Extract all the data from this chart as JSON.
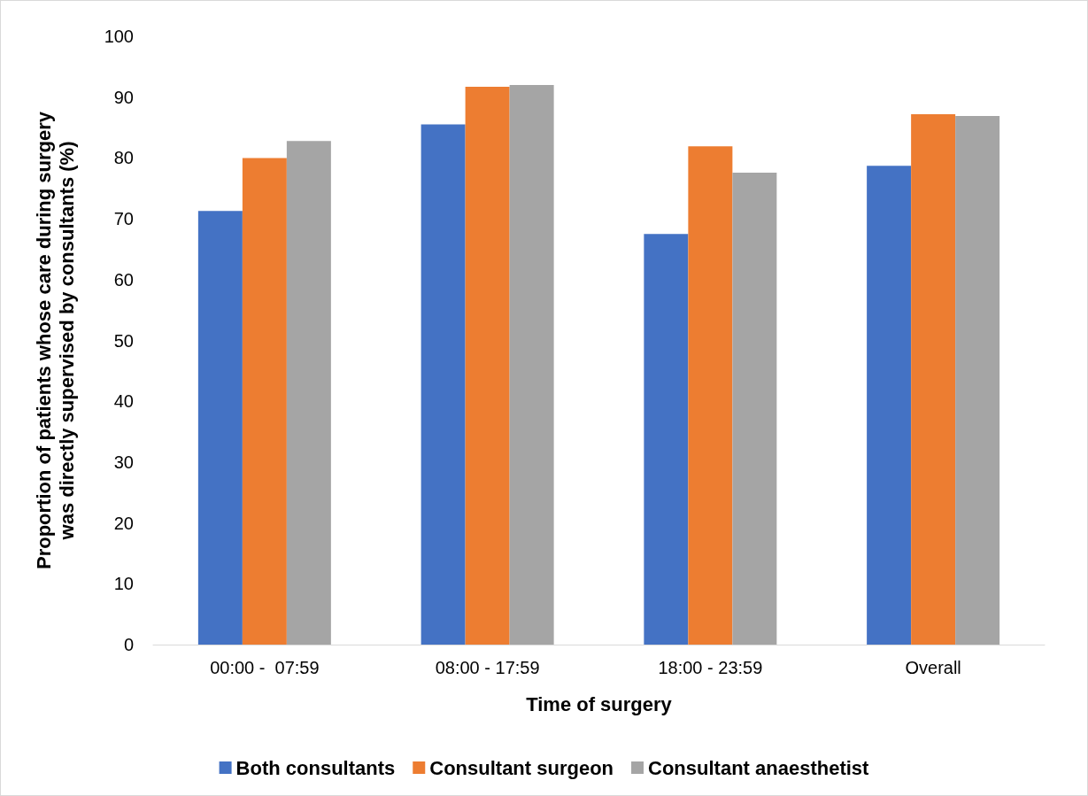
{
  "chart_data": {
    "type": "bar",
    "xlabel": "Time of surgery",
    "ylabel": "Proportion of patients whose care during surgery was directly supervised by consultants (%)",
    "categories": [
      "00:00 -  07:59",
      "08:00 - 17:59",
      "18:00 - 23:59",
      "Overall"
    ],
    "series": [
      {
        "name": "Both consultants",
        "color": "#4472c4",
        "values": [
          71.3,
          85.5,
          67.5,
          78.7
        ]
      },
      {
        "name": "Consultant surgeon",
        "color": "#ed7d31",
        "values": [
          80,
          91.7,
          81.9,
          87.2
        ]
      },
      {
        "name": "Consultant anaesthetist",
        "color": "#a5a5a5",
        "values": [
          82.8,
          92,
          77.6,
          86.9
        ]
      }
    ],
    "ylim": [
      0,
      100
    ],
    "yticks": [
      0,
      10,
      20,
      30,
      40,
      50,
      60,
      70,
      80,
      90,
      100
    ],
    "grid": false,
    "legend": "bottom"
  }
}
